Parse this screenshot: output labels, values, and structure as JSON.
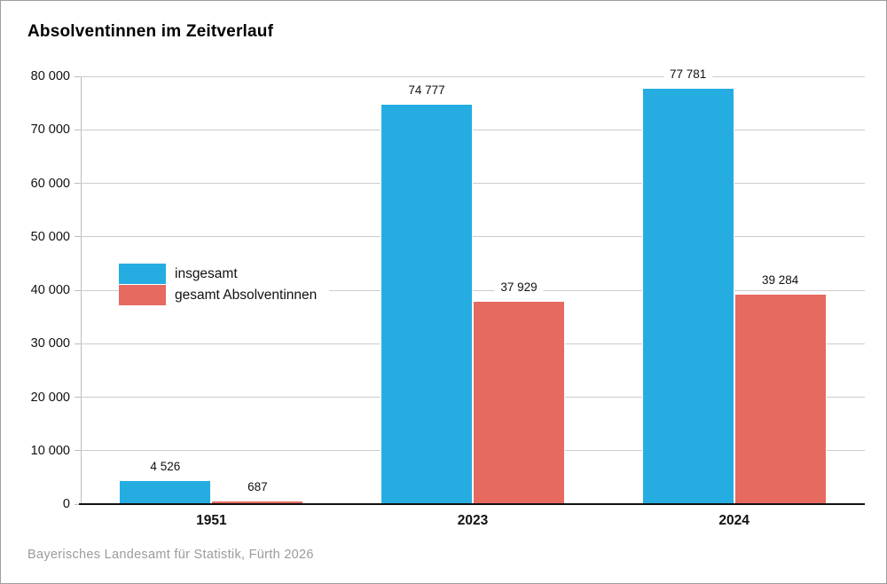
{
  "title": "Absolventinnen im Zeitverlauf",
  "source": "Bayerisches Landesamt für Statistik, Fürth 2026",
  "colors": {
    "blue": "#25ade2",
    "red": "#e66a60",
    "grid": "#cccccc",
    "axis": "#111111",
    "source_text": "#9b9b9b"
  },
  "chart_data": {
    "type": "bar",
    "categories": [
      "1951",
      "2023",
      "2024"
    ],
    "series": [
      {
        "name": "insgesamt",
        "color_key": "blue",
        "values": [
          4526,
          74777,
          77781
        ],
        "labels": [
          "4 526",
          "74 777",
          "77 781"
        ]
      },
      {
        "name": "gesamt Absolventinnen",
        "color_key": "red",
        "values": [
          687,
          37929,
          39284
        ],
        "labels": [
          "687",
          "37 929",
          "39 284"
        ]
      }
    ],
    "ylim": [
      0,
      80000
    ],
    "ytick_step": 10000,
    "ytick_labels": [
      "0",
      "10 000",
      "20 000",
      "30 000",
      "40 000",
      "50 000",
      "60 000",
      "70 000",
      "80 000"
    ],
    "grid": true,
    "legend_position": "inside-left"
  }
}
